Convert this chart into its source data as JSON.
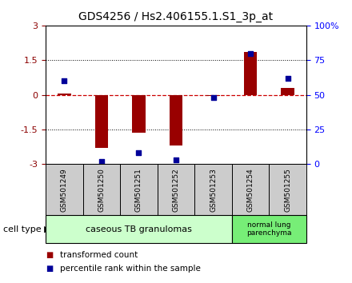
{
  "title": "GDS4256 / Hs2.406155.1.S1_3p_at",
  "samples": [
    "GSM501249",
    "GSM501250",
    "GSM501251",
    "GSM501252",
    "GSM501253",
    "GSM501254",
    "GSM501255"
  ],
  "transformed_counts": [
    0.05,
    -2.3,
    -1.65,
    -2.2,
    -0.05,
    1.85,
    0.3
  ],
  "percentile_ranks": [
    60,
    2,
    8,
    3,
    48,
    80,
    62
  ],
  "ylim_left": [
    -3,
    3
  ],
  "ylim_right": [
    0,
    100
  ],
  "yticks_left": [
    -3,
    -1.5,
    0,
    1.5,
    3
  ],
  "yticks_right": [
    0,
    25,
    50,
    75,
    100
  ],
  "ytick_labels_right": [
    "0",
    "25",
    "50",
    "75",
    "100%"
  ],
  "bar_color": "#990000",
  "dot_color": "#000099",
  "zero_line_color": "#cc0000",
  "dotted_line_color": "#000000",
  "group1_label": "caseous TB granulomas",
  "group2_label": "normal lung\nparenchyma",
  "group1_indices": [
    0,
    1,
    2,
    3,
    4
  ],
  "group2_indices": [
    5,
    6
  ],
  "group1_color": "#ccffcc",
  "group2_color": "#77ee77",
  "cell_type_label": "cell type",
  "legend_bar_label": "transformed count",
  "legend_dot_label": "percentile rank within the sample",
  "sample_box_color": "#cccccc",
  "title_fontsize": 10,
  "tick_fontsize": 8,
  "sample_fontsize": 6.5,
  "group_fontsize": 8,
  "legend_fontsize": 7.5,
  "bar_width": 0.35
}
